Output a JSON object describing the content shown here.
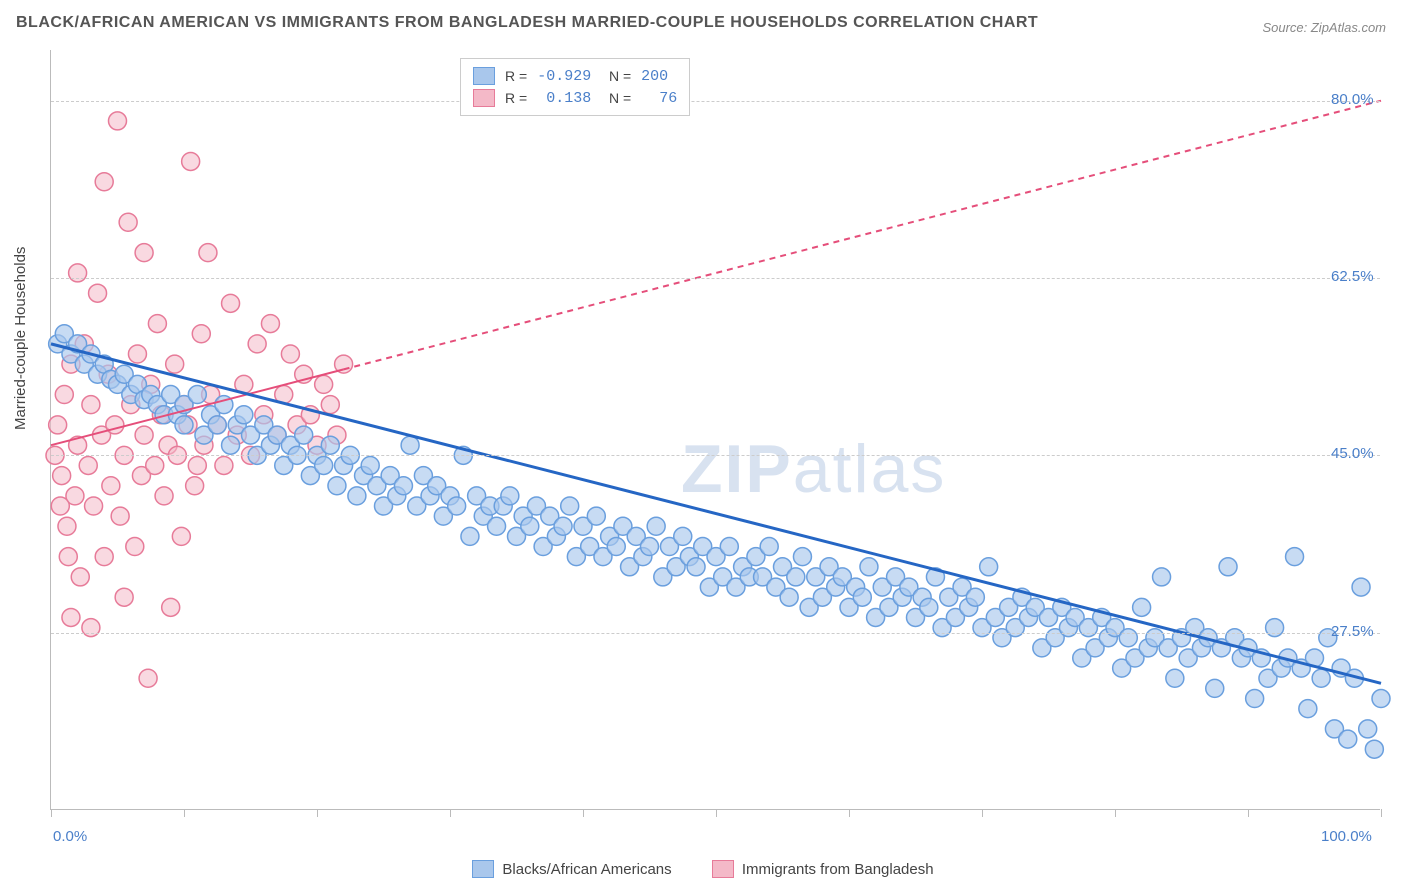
{
  "title": "BLACK/AFRICAN AMERICAN VS IMMIGRANTS FROM BANGLADESH MARRIED-COUPLE HOUSEHOLDS CORRELATION CHART",
  "source": "Source: ZipAtlas.com",
  "watermark_bold": "ZIP",
  "watermark_rest": "atlas",
  "y_axis_title": "Married-couple Households",
  "chart": {
    "type": "scatter",
    "background_color": "#ffffff",
    "grid_color": "#cccccc",
    "axis_color": "#bbbbbb",
    "label_color": "#4a7fc9",
    "xlim": [
      0,
      100
    ],
    "ylim": [
      10,
      85
    ],
    "x_ticks_minor": [
      0,
      10,
      20,
      30,
      40,
      50,
      60,
      70,
      80,
      90,
      100
    ],
    "x_tick_labels": [
      {
        "value": 0,
        "label": "0.0%"
      },
      {
        "value": 100,
        "label": "100.0%"
      }
    ],
    "y_gridlines": [
      27.5,
      45.0,
      62.5,
      80.0
    ],
    "y_tick_labels": [
      {
        "value": 27.5,
        "label": "27.5%"
      },
      {
        "value": 45.0,
        "label": "45.0%"
      },
      {
        "value": 62.5,
        "label": "62.5%"
      },
      {
        "value": 80.0,
        "label": "80.0%"
      }
    ],
    "series": [
      {
        "name": "Blacks/African Americans",
        "color_fill": "#a9c7ec",
        "color_stroke": "#6a9fde",
        "line_color": "#2566c4",
        "marker_radius": 9,
        "marker_opacity": 0.65,
        "R": "-0.929",
        "N": "200",
        "trend": {
          "x1": 0,
          "y1": 56,
          "x2": 100,
          "y2": 22.5,
          "solid_until_x": 100,
          "width": 3
        }
      },
      {
        "name": "Immigrants from Bangladesh",
        "color_fill": "#f4b9c8",
        "color_stroke": "#e77b99",
        "line_color": "#e54e7a",
        "marker_radius": 9,
        "marker_opacity": 0.55,
        "R": "0.138",
        "N": "76",
        "trend": {
          "x1": 0,
          "y1": 46,
          "x2": 100,
          "y2": 80,
          "solid_until_x": 22,
          "width": 2
        }
      }
    ]
  },
  "scatter_blue": [
    [
      0.5,
      56
    ],
    [
      1,
      57
    ],
    [
      1.5,
      55
    ],
    [
      2,
      56
    ],
    [
      2.5,
      54
    ],
    [
      3,
      55
    ],
    [
      3.5,
      53
    ],
    [
      4,
      54
    ],
    [
      4.5,
      52.5
    ],
    [
      5,
      52
    ],
    [
      5.5,
      53
    ],
    [
      6,
      51
    ],
    [
      6.5,
      52
    ],
    [
      7,
      50.5
    ],
    [
      7.5,
      51
    ],
    [
      8,
      50
    ],
    [
      8.5,
      49
    ],
    [
      9,
      51
    ],
    [
      9.5,
      49
    ],
    [
      10,
      50
    ],
    [
      10,
      48
    ],
    [
      11,
      51
    ],
    [
      11.5,
      47
    ],
    [
      12,
      49
    ],
    [
      12.5,
      48
    ],
    [
      13,
      50
    ],
    [
      13.5,
      46
    ],
    [
      14,
      48
    ],
    [
      14.5,
      49
    ],
    [
      15,
      47
    ],
    [
      15.5,
      45
    ],
    [
      16,
      48
    ],
    [
      16.5,
      46
    ],
    [
      17,
      47
    ],
    [
      17.5,
      44
    ],
    [
      18,
      46
    ],
    [
      18.5,
      45
    ],
    [
      19,
      47
    ],
    [
      19.5,
      43
    ],
    [
      20,
      45
    ],
    [
      20.5,
      44
    ],
    [
      21,
      46
    ],
    [
      21.5,
      42
    ],
    [
      22,
      44
    ],
    [
      22.5,
      45
    ],
    [
      23,
      41
    ],
    [
      23.5,
      43
    ],
    [
      24,
      44
    ],
    [
      24.5,
      42
    ],
    [
      25,
      40
    ],
    [
      25.5,
      43
    ],
    [
      26,
      41
    ],
    [
      26.5,
      42
    ],
    [
      27,
      46
    ],
    [
      27.5,
      40
    ],
    [
      28,
      43
    ],
    [
      28.5,
      41
    ],
    [
      29,
      42
    ],
    [
      29.5,
      39
    ],
    [
      30,
      41
    ],
    [
      30.5,
      40
    ],
    [
      31,
      45
    ],
    [
      31.5,
      37
    ],
    [
      32,
      41
    ],
    [
      32.5,
      39
    ],
    [
      33,
      40
    ],
    [
      33.5,
      38
    ],
    [
      34,
      40
    ],
    [
      34.5,
      41
    ],
    [
      35,
      37
    ],
    [
      35.5,
      39
    ],
    [
      36,
      38
    ],
    [
      36.5,
      40
    ],
    [
      37,
      36
    ],
    [
      37.5,
      39
    ],
    [
      38,
      37
    ],
    [
      38.5,
      38
    ],
    [
      39,
      40
    ],
    [
      39.5,
      35
    ],
    [
      40,
      38
    ],
    [
      40.5,
      36
    ],
    [
      41,
      39
    ],
    [
      41.5,
      35
    ],
    [
      42,
      37
    ],
    [
      42.5,
      36
    ],
    [
      43,
      38
    ],
    [
      43.5,
      34
    ],
    [
      44,
      37
    ],
    [
      44.5,
      35
    ],
    [
      45,
      36
    ],
    [
      45.5,
      38
    ],
    [
      46,
      33
    ],
    [
      46.5,
      36
    ],
    [
      47,
      34
    ],
    [
      47.5,
      37
    ],
    [
      48,
      35
    ],
    [
      48.5,
      34
    ],
    [
      49,
      36
    ],
    [
      49.5,
      32
    ],
    [
      50,
      35
    ],
    [
      50.5,
      33
    ],
    [
      51,
      36
    ],
    [
      51.5,
      32
    ],
    [
      52,
      34
    ],
    [
      52.5,
      33
    ],
    [
      53,
      35
    ],
    [
      53.5,
      33
    ],
    [
      54,
      36
    ],
    [
      54.5,
      32
    ],
    [
      55,
      34
    ],
    [
      55.5,
      31
    ],
    [
      56,
      33
    ],
    [
      56.5,
      35
    ],
    [
      57,
      30
    ],
    [
      57.5,
      33
    ],
    [
      58,
      31
    ],
    [
      58.5,
      34
    ],
    [
      59,
      32
    ],
    [
      59.5,
      33
    ],
    [
      60,
      30
    ],
    [
      60.5,
      32
    ],
    [
      61,
      31
    ],
    [
      61.5,
      34
    ],
    [
      62,
      29
    ],
    [
      62.5,
      32
    ],
    [
      63,
      30
    ],
    [
      63.5,
      33
    ],
    [
      64,
      31
    ],
    [
      64.5,
      32
    ],
    [
      65,
      29
    ],
    [
      65.5,
      31
    ],
    [
      66,
      30
    ],
    [
      66.5,
      33
    ],
    [
      67,
      28
    ],
    [
      67.5,
      31
    ],
    [
      68,
      29
    ],
    [
      68.5,
      32
    ],
    [
      69,
      30
    ],
    [
      69.5,
      31
    ],
    [
      70,
      28
    ],
    [
      70.5,
      34
    ],
    [
      71,
      29
    ],
    [
      71.5,
      27
    ],
    [
      72,
      30
    ],
    [
      72.5,
      28
    ],
    [
      73,
      31
    ],
    [
      73.5,
      29
    ],
    [
      74,
      30
    ],
    [
      74.5,
      26
    ],
    [
      75,
      29
    ],
    [
      75.5,
      27
    ],
    [
      76,
      30
    ],
    [
      76.5,
      28
    ],
    [
      77,
      29
    ],
    [
      77.5,
      25
    ],
    [
      78,
      28
    ],
    [
      78.5,
      26
    ],
    [
      79,
      29
    ],
    [
      79.5,
      27
    ],
    [
      80,
      28
    ],
    [
      80.5,
      24
    ],
    [
      81,
      27
    ],
    [
      81.5,
      25
    ],
    [
      82,
      30
    ],
    [
      82.5,
      26
    ],
    [
      83,
      27
    ],
    [
      83.5,
      33
    ],
    [
      84,
      26
    ],
    [
      84.5,
      23
    ],
    [
      85,
      27
    ],
    [
      85.5,
      25
    ],
    [
      86,
      28
    ],
    [
      86.5,
      26
    ],
    [
      87,
      27
    ],
    [
      87.5,
      22
    ],
    [
      88,
      26
    ],
    [
      88.5,
      34
    ],
    [
      89,
      27
    ],
    [
      89.5,
      25
    ],
    [
      90,
      26
    ],
    [
      90.5,
      21
    ],
    [
      91,
      25
    ],
    [
      91.5,
      23
    ],
    [
      92,
      28
    ],
    [
      92.5,
      24
    ],
    [
      93,
      25
    ],
    [
      93.5,
      35
    ],
    [
      94,
      24
    ],
    [
      94.5,
      20
    ],
    [
      95,
      25
    ],
    [
      95.5,
      23
    ],
    [
      96,
      27
    ],
    [
      96.5,
      18
    ],
    [
      97,
      24
    ],
    [
      97.5,
      17
    ],
    [
      98,
      23
    ],
    [
      98.5,
      32
    ],
    [
      99,
      18
    ],
    [
      99.5,
      16
    ],
    [
      100,
      21
    ]
  ],
  "scatter_pink": [
    [
      0.3,
      45
    ],
    [
      0.5,
      48
    ],
    [
      0.8,
      43
    ],
    [
      1,
      51
    ],
    [
      1.2,
      38
    ],
    [
      1.5,
      54
    ],
    [
      1.8,
      41
    ],
    [
      2,
      46
    ],
    [
      2.2,
      33
    ],
    [
      2.5,
      56
    ],
    [
      2.8,
      44
    ],
    [
      3,
      50
    ],
    [
      3.2,
      40
    ],
    [
      3.5,
      61
    ],
    [
      3.8,
      47
    ],
    [
      4,
      35
    ],
    [
      4.3,
      53
    ],
    [
      4.5,
      42
    ],
    [
      4.8,
      48
    ],
    [
      5,
      78
    ],
    [
      5.2,
      39
    ],
    [
      5.5,
      45
    ],
    [
      5.8,
      68
    ],
    [
      6,
      50
    ],
    [
      6.3,
      36
    ],
    [
      6.5,
      55
    ],
    [
      6.8,
      43
    ],
    [
      7,
      47
    ],
    [
      7.3,
      23
    ],
    [
      7.5,
      52
    ],
    [
      7.8,
      44
    ],
    [
      8,
      58
    ],
    [
      8.3,
      49
    ],
    [
      8.5,
      41
    ],
    [
      8.8,
      46
    ],
    [
      9,
      30
    ],
    [
      9.3,
      54
    ],
    [
      9.5,
      45
    ],
    [
      9.8,
      37
    ],
    [
      10,
      50
    ],
    [
      10.3,
      48
    ],
    [
      10.5,
      74
    ],
    [
      10.8,
      42
    ],
    [
      11,
      44
    ],
    [
      11.3,
      57
    ],
    [
      11.5,
      46
    ],
    [
      11.8,
      65
    ],
    [
      12,
      51
    ],
    [
      12.5,
      48
    ],
    [
      13,
      44
    ],
    [
      13.5,
      60
    ],
    [
      14,
      47
    ],
    [
      14.5,
      52
    ],
    [
      15,
      45
    ],
    [
      15.5,
      56
    ],
    [
      16,
      49
    ],
    [
      16.5,
      58
    ],
    [
      17,
      47
    ],
    [
      17.5,
      51
    ],
    [
      18,
      55
    ],
    [
      18.5,
      48
    ],
    [
      19,
      53
    ],
    [
      19.5,
      49
    ],
    [
      20,
      46
    ],
    [
      20.5,
      52
    ],
    [
      21,
      50
    ],
    [
      21.5,
      47
    ],
    [
      22,
      54
    ],
    [
      1.5,
      29
    ],
    [
      3,
      28
    ],
    [
      4,
      72
    ],
    [
      2,
      63
    ],
    [
      0.7,
      40
    ],
    [
      1.3,
      35
    ],
    [
      5.5,
      31
    ],
    [
      7,
      65
    ]
  ]
}
